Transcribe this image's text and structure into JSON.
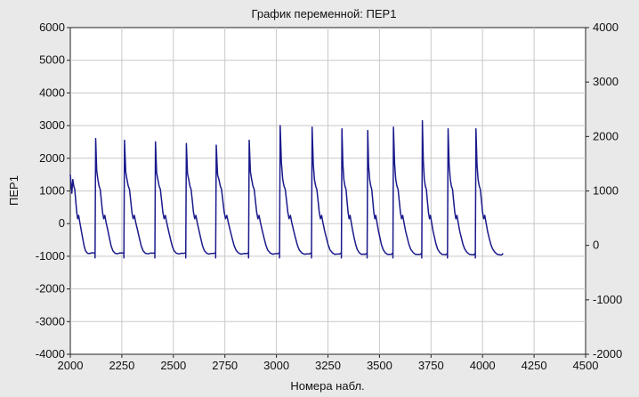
{
  "chart_data": {
    "type": "line",
    "title": "График переменной: ПЕР1",
    "xlabel": "Номера набл.",
    "ylabel": "ПЕР1",
    "xlim": [
      2000,
      4500
    ],
    "ylim": [
      -4000,
      6000
    ],
    "y2lim": [
      -2000,
      4000
    ],
    "grid": true,
    "x_ticks": [
      "2000",
      "2250",
      "2500",
      "2750",
      "3000",
      "3250",
      "3500",
      "3750",
      "4000",
      "4250",
      "4500"
    ],
    "y_ticks": [
      "-4000",
      "-3000",
      "-2000",
      "-1000",
      "0",
      "1000",
      "2000",
      "3000",
      "4000",
      "5000",
      "6000"
    ],
    "y2_ticks": [
      "-2000",
      "-1000",
      "0",
      "1000",
      "2000",
      "3000",
      "4000"
    ],
    "line_color": "#1a1a8c",
    "series": [
      {
        "cycles": [
          {
            "x0": 2000,
            "peak": 1500,
            "period": 120
          },
          {
            "x0": 2120,
            "peak": 2600,
            "period": 140
          },
          {
            "x0": 2260,
            "peak": 2550,
            "period": 150
          },
          {
            "x0": 2410,
            "peak": 2500,
            "period": 150
          },
          {
            "x0": 2560,
            "peak": 2450,
            "period": 145
          },
          {
            "x0": 2705,
            "peak": 2400,
            "period": 160
          },
          {
            "x0": 2865,
            "peak": 2550,
            "period": 150
          },
          {
            "x0": 3015,
            "peak": 3000,
            "period": 155
          },
          {
            "x0": 3170,
            "peak": 2950,
            "period": 145
          },
          {
            "x0": 3315,
            "peak": 2900,
            "period": 125
          },
          {
            "x0": 3440,
            "peak": 2850,
            "period": 125
          },
          {
            "x0": 3565,
            "peak": 2950,
            "period": 140
          },
          {
            "x0": 3705,
            "peak": 3150,
            "period": 125
          },
          {
            "x0": 3830,
            "peak": 2900,
            "period": 135
          },
          {
            "x0": 3965,
            "peak": 2900,
            "period": 135
          }
        ],
        "end_x": 4100,
        "trough": -950
      }
    ]
  }
}
